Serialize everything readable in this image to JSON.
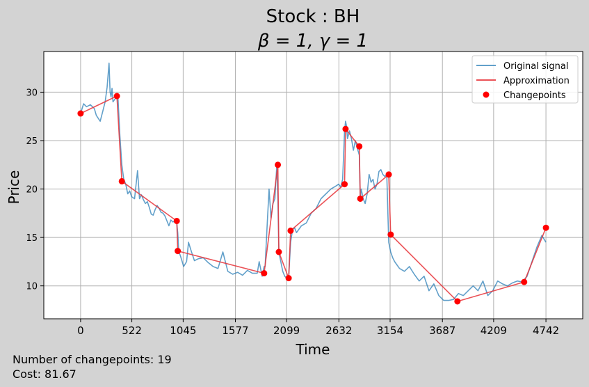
{
  "chart_data": {
    "type": "line",
    "title": "Stock : BH",
    "subtitle": "β = 1, γ = 1",
    "xlabel": "Time",
    "ylabel": "Price",
    "xlim": [
      -375,
      5117
    ],
    "ylim": [
      6.6,
      34.2
    ],
    "xticks": [
      0,
      522,
      1045,
      1577,
      2099,
      2632,
      3154,
      3687,
      4209,
      4742
    ],
    "xtick_labels": [
      "0",
      "522",
      "1045",
      "1577",
      "2099",
      "2632",
      "3154",
      "3687",
      "4209",
      "4742"
    ],
    "yticks": [
      10,
      15,
      20,
      25,
      30
    ],
    "ytick_labels": [
      "10",
      "15",
      "20",
      "25",
      "30"
    ],
    "grid": true,
    "legend_position": "top-right",
    "colors": {
      "signal": "#1f77b4",
      "approx": "#e8343a",
      "changepoint": "#ff0000"
    },
    "series": [
      {
        "name": "Original signal",
        "style": "line",
        "x": [
          0,
          30,
          60,
          100,
          140,
          160,
          200,
          230,
          250,
          270,
          290,
          300,
          310,
          320,
          330,
          350,
          380,
          400,
          420,
          440,
          460,
          480,
          500,
          520,
          550,
          580,
          600,
          620,
          640,
          660,
          680,
          700,
          720,
          740,
          760,
          780,
          800,
          820,
          840,
          860,
          880,
          900,
          920,
          940,
          960,
          980,
          990,
          1000,
          1020,
          1050,
          1080,
          1100,
          1130,
          1160,
          1200,
          1250,
          1300,
          1350,
          1400,
          1450,
          1500,
          1550,
          1600,
          1650,
          1700,
          1750,
          1800,
          1820,
          1850,
          1870,
          1880,
          1890,
          1900,
          1920,
          1940,
          1960,
          1980,
          2000,
          2010,
          2020,
          2040,
          2060,
          2080,
          2100,
          2120,
          2140,
          2160,
          2180,
          2200,
          2250,
          2300,
          2350,
          2400,
          2450,
          2500,
          2550,
          2600,
          2630,
          2650,
          2670,
          2690,
          2700,
          2710,
          2720,
          2740,
          2760,
          2780,
          2800,
          2820,
          2840,
          2850,
          2860,
          2880,
          2900,
          2920,
          2940,
          2960,
          2980,
          3000,
          3020,
          3040,
          3060,
          3080,
          3100,
          3120,
          3140,
          3160,
          3180,
          3200,
          3250,
          3300,
          3350,
          3400,
          3450,
          3500,
          3550,
          3600,
          3650,
          3700,
          3750,
          3800,
          3850,
          3900,
          3950,
          4000,
          4050,
          4100,
          4150,
          4200,
          4250,
          4300,
          4350,
          4400,
          4450,
          4500,
          4550,
          4600,
          4650,
          4700,
          4742
        ],
        "y": [
          27.8,
          28.8,
          28.5,
          28.7,
          28.3,
          27.6,
          27.0,
          28.2,
          29.0,
          30.5,
          33.0,
          30.0,
          29.5,
          30.4,
          29.0,
          29.3,
          29.6,
          25.5,
          22.5,
          21.0,
          20.5,
          19.5,
          19.8,
          19.2,
          19.0,
          21.9,
          19.0,
          19.4,
          18.9,
          18.5,
          18.7,
          18.1,
          17.4,
          17.3,
          17.9,
          18.3,
          18.0,
          17.6,
          17.5,
          17.2,
          16.7,
          16.2,
          16.8,
          16.6,
          16.7,
          16.5,
          15.5,
          13.6,
          13.0,
          12.0,
          12.5,
          14.5,
          13.5,
          12.6,
          12.8,
          12.9,
          12.4,
          12.0,
          11.8,
          13.5,
          11.5,
          11.2,
          11.4,
          11.1,
          11.6,
          11.3,
          11.3,
          12.5,
          11.0,
          12.0,
          12.0,
          14.0,
          16.0,
          20.0,
          17.0,
          18.5,
          19.0,
          22.5,
          19.0,
          13.5,
          12.5,
          11.5,
          11.0,
          10.8,
          10.8,
          14.5,
          15.8,
          16.0,
          15.5,
          16.2,
          16.5,
          17.5,
          18.0,
          19.0,
          19.5,
          20.0,
          20.3,
          20.5,
          20.2,
          21.0,
          26.0,
          27.0,
          26.5,
          25.2,
          26.0,
          25.2,
          24.0,
          25.0,
          24.2,
          23.5,
          19.0,
          20.0,
          19.0,
          18.5,
          19.5,
          21.5,
          20.7,
          21.0,
          20.0,
          20.5,
          21.8,
          22.0,
          21.5,
          21.3,
          21.5,
          14.5,
          13.5,
          12.9,
          12.5,
          11.8,
          11.5,
          12.0,
          11.2,
          10.5,
          11.0,
          9.5,
          10.2,
          9.0,
          8.5,
          8.5,
          8.6,
          9.2,
          9.0,
          9.5,
          10.0,
          9.5,
          10.5,
          9.0,
          9.5,
          10.5,
          10.2,
          10.0,
          10.3,
          10.5,
          10.4,
          11.0,
          12.5,
          14.0,
          15.2,
          14.5
        ]
      },
      {
        "name": "Approximation",
        "style": "line",
        "x": [
          0,
          370,
          420,
          980,
          990,
          1870,
          2010,
          2020,
          2120,
          2140,
          2690,
          2700,
          2840,
          2850,
          3140,
          3160,
          3840,
          4520,
          4742
        ],
        "y": [
          27.8,
          29.6,
          20.8,
          16.7,
          13.6,
          11.3,
          22.5,
          13.5,
          10.8,
          15.7,
          20.5,
          26.2,
          24.4,
          19.0,
          21.5,
          15.3,
          8.4,
          10.4,
          16.0
        ]
      },
      {
        "name": "Changepoints",
        "style": "marker",
        "x": [
          0,
          370,
          420,
          980,
          990,
          1870,
          2010,
          2020,
          2120,
          2140,
          2690,
          2700,
          2840,
          2850,
          3140,
          3160,
          3840,
          4520,
          4742
        ],
        "y": [
          27.8,
          29.6,
          20.8,
          16.7,
          13.6,
          11.3,
          22.5,
          13.5,
          10.8,
          15.7,
          20.5,
          26.2,
          24.4,
          19.0,
          21.5,
          15.3,
          8.4,
          10.4,
          16.0
        ]
      }
    ]
  },
  "footer": {
    "changepoints_text": "Number of changepoints: 19",
    "cost_text": "Cost: 81.67"
  }
}
